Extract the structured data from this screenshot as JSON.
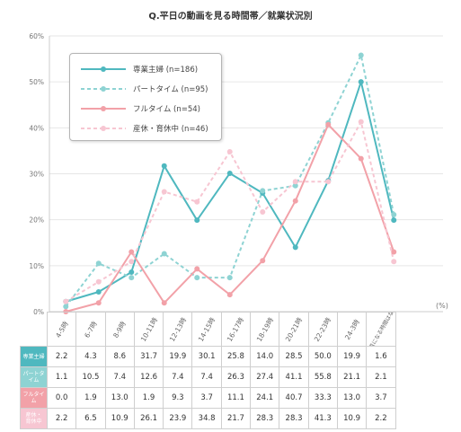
{
  "chart_data": {
    "type": "line",
    "title": "Q.平日の動画を見る時間帯／就業状況別",
    "unit_label": "(%)",
    "ylim": [
      0,
      60
    ],
    "y_ticks": [
      "0%",
      "10%",
      "20%",
      "30%",
      "40%",
      "50%",
      "60%"
    ],
    "grid": true,
    "legend_position": "top-left",
    "categories": [
      "4-5時",
      "6-7時",
      "8-9時",
      "10-11時",
      "12-13時",
      "14-15時",
      "16-17時",
      "18-19時",
      "20-21時",
      "22-23時",
      "24-3時",
      "ご覧になる時間はない"
    ],
    "series": [
      {
        "name": "専業主婦 (n=186)",
        "row_label": "専業主婦",
        "color": "#4fb8bf",
        "style": "solid",
        "values": [
          2.2,
          4.3,
          8.6,
          31.7,
          19.9,
          30.1,
          25.8,
          14.0,
          28.5,
          50.0,
          19.9,
          1.6
        ]
      },
      {
        "name": "パートタイム (n=95)",
        "row_label": "パートタイム",
        "color": "#8ed3d3",
        "style": "dashed",
        "values": [
          1.1,
          10.5,
          7.4,
          12.6,
          7.4,
          7.4,
          26.3,
          27.4,
          41.1,
          55.8,
          21.1,
          2.1
        ]
      },
      {
        "name": "フルタイム (n=54)",
        "row_label": "フルタイム",
        "color": "#f2a1a8",
        "style": "solid",
        "values": [
          0.0,
          1.9,
          13.0,
          1.9,
          9.3,
          3.7,
          11.1,
          24.1,
          40.7,
          33.3,
          13.0,
          3.7
        ]
      },
      {
        "name": "産休・育休中 (n=46)",
        "row_label": "産休・\n育休中",
        "color": "#f7c6d2",
        "style": "dashed",
        "values": [
          2.2,
          6.5,
          10.9,
          26.1,
          23.9,
          34.8,
          21.7,
          28.3,
          28.3,
          41.3,
          10.9,
          2.2
        ]
      }
    ]
  }
}
